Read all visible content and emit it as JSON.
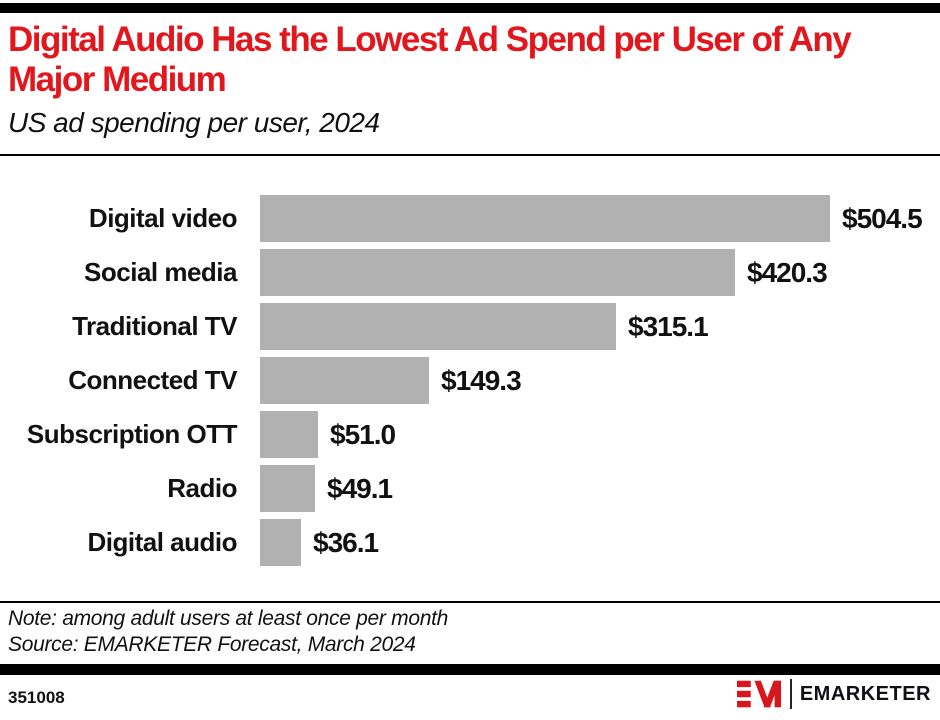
{
  "header": {
    "title": "Digital Audio Has the Lowest Ad Spend per User of Any Major Medium",
    "subtitle": "US ad spending per user, 2024"
  },
  "chart_data": {
    "type": "bar",
    "orientation": "horizontal",
    "title": "US ad spending per user, 2024",
    "categories": [
      "Digital video",
      "Social media",
      "Traditional TV",
      "Connected TV",
      "Subscription OTT",
      "Radio",
      "Digital audio"
    ],
    "values": [
      504.5,
      420.3,
      315.1,
      149.3,
      51.0,
      49.1,
      36.1
    ],
    "value_labels": [
      "$504.5",
      "$420.3",
      "$315.1",
      "$149.3",
      "$51.0",
      "$49.1",
      "$36.1"
    ],
    "unit": "US$ per user",
    "xlim": [
      0,
      504.5
    ],
    "grid": false,
    "legend": false,
    "bar_color": "#b1b1b1"
  },
  "footnotes": {
    "note": "Note: among adult users at least once per month",
    "source": "Source: EMARKETER Forecast, March 2024"
  },
  "footer": {
    "chart_id": "351008",
    "brand_name": "EMARKETER"
  },
  "colors": {
    "accent_red": "#e2171e",
    "logo_red": "#d7161e",
    "bar_gray": "#b1b1b1",
    "text_black": "#111111",
    "rule_black": "#000000"
  }
}
